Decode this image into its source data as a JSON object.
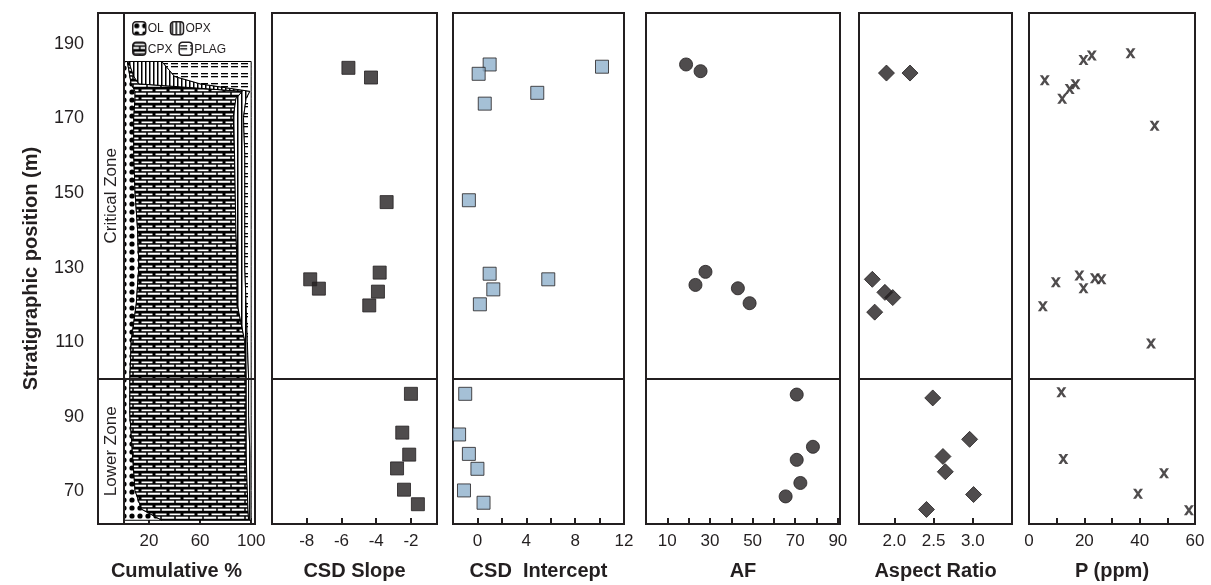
{
  "chart_data": [
    {
      "type": "area",
      "orientation": "horizontal",
      "stacked": true,
      "xlabel": "Cumulative %",
      "ylabel": "Stratigraphic position (m)",
      "legend": "top left",
      "x": [
        62,
        65,
        70,
        80,
        90,
        100,
        110,
        120,
        130,
        140,
        150,
        160,
        170,
        175,
        177,
        179,
        181,
        183,
        185
      ],
      "series": [
        {
          "name": "OL",
          "color": "#000000",
          "values": [
            30,
            14,
            9,
            7,
            5,
            5,
            6,
            10,
            12,
            11,
            9,
            8,
            8,
            9,
            9,
            6,
            5,
            4,
            3
          ]
        },
        {
          "name": "CPX",
          "color": "#000000",
          "values": [
            68,
            83.5,
            88,
            89,
            91,
            91,
            89,
            79,
            77,
            77,
            78.5,
            79,
            78,
            79,
            84,
            6,
            3,
            2,
            1
          ]
        },
        {
          "name": "OPX",
          "color": "#000000",
          "values": [
            1,
            1.5,
            2,
            3,
            2,
            2,
            2,
            7,
            6,
            7,
            7.5,
            8,
            8,
            8,
            6,
            48,
            32,
            29,
            26
          ]
        },
        {
          "name": "PLAG",
          "color": "#000000",
          "values": [
            1,
            1,
            1,
            1,
            2,
            2,
            3,
            4,
            5,
            5,
            5,
            5,
            6,
            4,
            1,
            40,
            60,
            65,
            70
          ]
        }
      ],
      "xlim": [
        -20,
        103
      ],
      "xticks": [
        20,
        60,
        100
      ],
      "ylim": [
        61,
        198
      ],
      "yticks": [
        70,
        90,
        110,
        130,
        150,
        170,
        190
      ],
      "ref_lines": [
        {
          "axis": "y",
          "value": 100
        },
        {
          "axis": "x",
          "value": 0
        }
      ],
      "annotations": [
        "Critical Zone",
        "Lower Zone"
      ],
      "grid": false
    },
    {
      "type": "scatter",
      "xlabel": "CSD Slope",
      "marker": "square",
      "color": "#231f20",
      "x": [
        -5.6,
        -4.3,
        -3.4,
        -7.8,
        -7.3,
        -3.8,
        -3.9,
        -4.4,
        -2.0,
        -2.5,
        -2.1,
        -2.8,
        -2.4,
        -1.6
      ],
      "values": [
        183.3,
        180.7,
        147.3,
        126.6,
        124.1,
        128.4,
        123.3,
        119.6,
        95.9,
        85.5,
        79.6,
        75.9,
        70.2,
        66.3
      ],
      "xlim": [
        -10,
        -0.5
      ],
      "xticks": [
        -8,
        -6,
        -4,
        -2
      ],
      "ylim": [
        61,
        198
      ],
      "yticks": [
        70,
        90,
        110,
        130,
        150,
        170,
        190
      ],
      "tick_labels": "x",
      "ref_lines": [
        {
          "axis": "y",
          "value": 100
        }
      ],
      "grid": false
    },
    {
      "type": "scatter",
      "xlabel": "CSD  Intercept",
      "marker": "square",
      "color": "#8fb0cc",
      "x": [
        1.0,
        0.1,
        10.2,
        4.9,
        0.6,
        -0.7,
        1.0,
        5.8,
        1.3,
        0.2,
        -1.0,
        -1.5,
        -0.7,
        0.0,
        -1.1,
        0.5
      ],
      "values": [
        184.2,
        181.7,
        183.6,
        176.6,
        173.7,
        147.8,
        128.1,
        126.6,
        123.9,
        119.9,
        95.9,
        85.0,
        79.8,
        75.8,
        70.0,
        66.7
      ],
      "xlim": [
        -2,
        12
      ],
      "xticks": [
        0,
        {
          "value": 2,
          "label": null
        },
        4,
        {
          "value": 6,
          "label": null
        },
        8,
        {
          "value": 10,
          "label": null
        },
        12
      ],
      "ylim": [
        61,
        198
      ],
      "yticks": [
        70,
        90,
        110,
        130,
        150,
        170,
        190
      ],
      "tick_labels": "x",
      "ref_lines": [
        {
          "axis": "y",
          "value": 100
        }
      ],
      "grid": false
    },
    {
      "type": "scatter",
      "xlabel": "AF",
      "marker": "circle",
      "color": "#231f20",
      "x": [
        18.8,
        25.6,
        27.9,
        23.2,
        43.1,
        48.6,
        70.7,
        78.3,
        70.7,
        72.4,
        65.5
      ],
      "values": [
        184.2,
        182.4,
        128.6,
        125.1,
        124.2,
        120.2,
        95.7,
        81.7,
        78.2,
        72.0,
        68.4
      ],
      "xlim": [
        0,
        91
      ],
      "xticks": [
        10,
        {
          "value": 20,
          "label": null
        },
        30,
        {
          "value": 40,
          "label": null
        },
        50,
        {
          "value": 60,
          "label": null
        },
        70,
        {
          "value": 80,
          "label": null
        },
        90
      ],
      "ylim": [
        61,
        198
      ],
      "yticks": [
        70,
        90,
        110,
        130,
        150,
        170,
        190
      ],
      "tick_labels": "x",
      "ref_lines": [
        {
          "axis": "y",
          "value": 100
        }
      ],
      "grid": false
    },
    {
      "type": "scatter",
      "xlabel": "Aspect Ratio",
      "marker": "diamond",
      "color": "#231f20",
      "x": [
        1.9,
        2.2,
        1.72,
        1.88,
        1.98,
        1.75,
        2.49,
        2.96,
        2.62,
        2.65,
        3.01,
        2.41
      ],
      "values": [
        181.9,
        181.9,
        126.6,
        123.1,
        121.7,
        117.8,
        94.8,
        83.7,
        79.1,
        75.0,
        68.9,
        64.9
      ],
      "xlim": [
        1.55,
        3.5
      ],
      "xticks": [
        {
          "value": 2,
          "label": "2.0"
        },
        2.5,
        {
          "value": 3,
          "label": "3.0"
        }
      ],
      "ylim": [
        61,
        198
      ],
      "yticks": [
        70,
        90,
        110,
        130,
        150,
        170,
        190
      ],
      "tick_labels": "x",
      "ref_lines": [
        {
          "axis": "y",
          "value": 100
        }
      ],
      "grid": false
    },
    {
      "type": "scatter",
      "xlabel": "P (ppm)",
      "marker": "cross",
      "color": "#231f20",
      "x": [
        5.7,
        19.7,
        22.7,
        36.7,
        12.0,
        14.7,
        16.8,
        45.4,
        9.7,
        18.2,
        19.7,
        23.8,
        26.2,
        5.0,
        44.1,
        11.7,
        12.4,
        48.8,
        39.4,
        57.8
      ],
      "values": [
        180.0,
        185.4,
        186.6,
        187.2,
        175.0,
        177.6,
        178.9,
        167.8,
        125.8,
        127.6,
        124.2,
        126.9,
        126.6,
        119.4,
        109.4,
        96.3,
        78.4,
        74.6,
        69.1,
        64.7
      ],
      "xlim": [
        0,
        60
      ],
      "xticks": [
        0,
        {
          "value": 10,
          "label": null
        },
        20,
        {
          "value": 30,
          "label": null
        },
        40,
        {
          "value": 50,
          "label": null
        },
        60
      ],
      "ylim": [
        61,
        198
      ],
      "yticks": [
        70,
        90,
        110,
        130,
        150,
        170,
        190
      ],
      "tick_labels": "x",
      "ref_lines": [
        {
          "axis": "y",
          "value": 100
        }
      ],
      "grid": false
    }
  ]
}
